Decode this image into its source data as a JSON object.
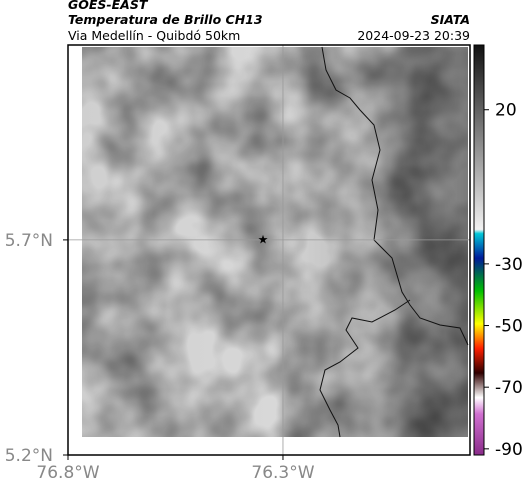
{
  "header": {
    "source": "GOES-EAST",
    "product": "Temperatura de Brillo CH13",
    "route": "Via Medellín - Quibdó 50km",
    "agency": "SIATA",
    "timestamp": "2024-09-23 20:39"
  },
  "map": {
    "xlim": [
      -76.8,
      -75.865
    ],
    "ylim": [
      5.2,
      6.153
    ],
    "xticks": [
      {
        "value": -76.8,
        "label": "76.8°W"
      },
      {
        "value": -76.3,
        "label": "76.3°W"
      }
    ],
    "yticks": [
      {
        "value": 5.2,
        "label": "5.2°N"
      },
      {
        "value": 5.7,
        "label": "5.7°N"
      }
    ],
    "grid": true
  },
  "colorbar": {
    "clim": [
      -92,
      41
    ],
    "ticks": [
      20,
      -30,
      -50,
      -70,
      -90
    ]
  }
}
